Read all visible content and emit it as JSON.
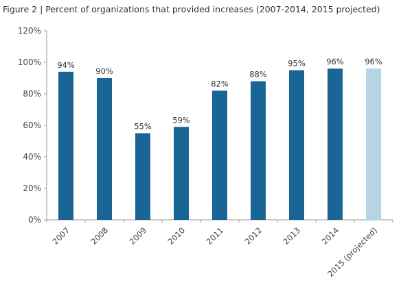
{
  "chart_data": {
    "type": "bar",
    "title": "Figure 2 | Percent of organizations  that provided increases (2007-2014, 2015 projected)",
    "categories": [
      "2007",
      "2008",
      "2009",
      "2010",
      "2011",
      "2012",
      "2013",
      "2014",
      "2015 (projected)"
    ],
    "values": [
      94,
      90,
      55,
      59,
      82,
      88,
      95,
      96,
      96
    ],
    "data_labels": [
      "94%",
      "90%",
      "55%",
      "59%",
      "82%",
      "88%",
      "95%",
      "96%",
      "96%"
    ],
    "y_ticks": [
      "0%",
      "20%",
      "40%",
      "60%",
      "80%",
      "100%",
      "120%"
    ],
    "ylim": [
      0,
      120
    ],
    "xlabel": "",
    "ylabel": "",
    "grid": false,
    "legend": "none",
    "colors": {
      "actual": "#1a6596",
      "projected": "#b6d4e1",
      "axis": "#999999"
    }
  }
}
